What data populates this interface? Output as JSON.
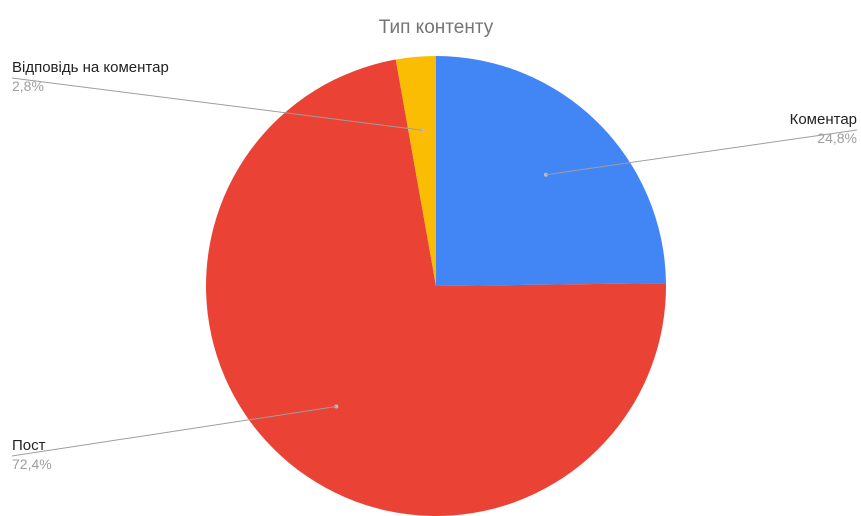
{
  "chart_data": {
    "type": "pie",
    "title": "Тип контенту",
    "start_angle_deg": 0,
    "direction": "clockwise",
    "slices": [
      {
        "label": "Коментар",
        "value": 24.8,
        "value_label": "24,8%",
        "color": "#4285f4",
        "label_side": "right"
      },
      {
        "label": "Пост",
        "value": 72.4,
        "value_label": "72,4%",
        "color": "#ea4335",
        "label_side": "left"
      },
      {
        "label": "Відповідь на коментар",
        "value": 2.8,
        "value_label": "2,8%",
        "color": "#fbbc04",
        "label_side": "left"
      }
    ]
  }
}
